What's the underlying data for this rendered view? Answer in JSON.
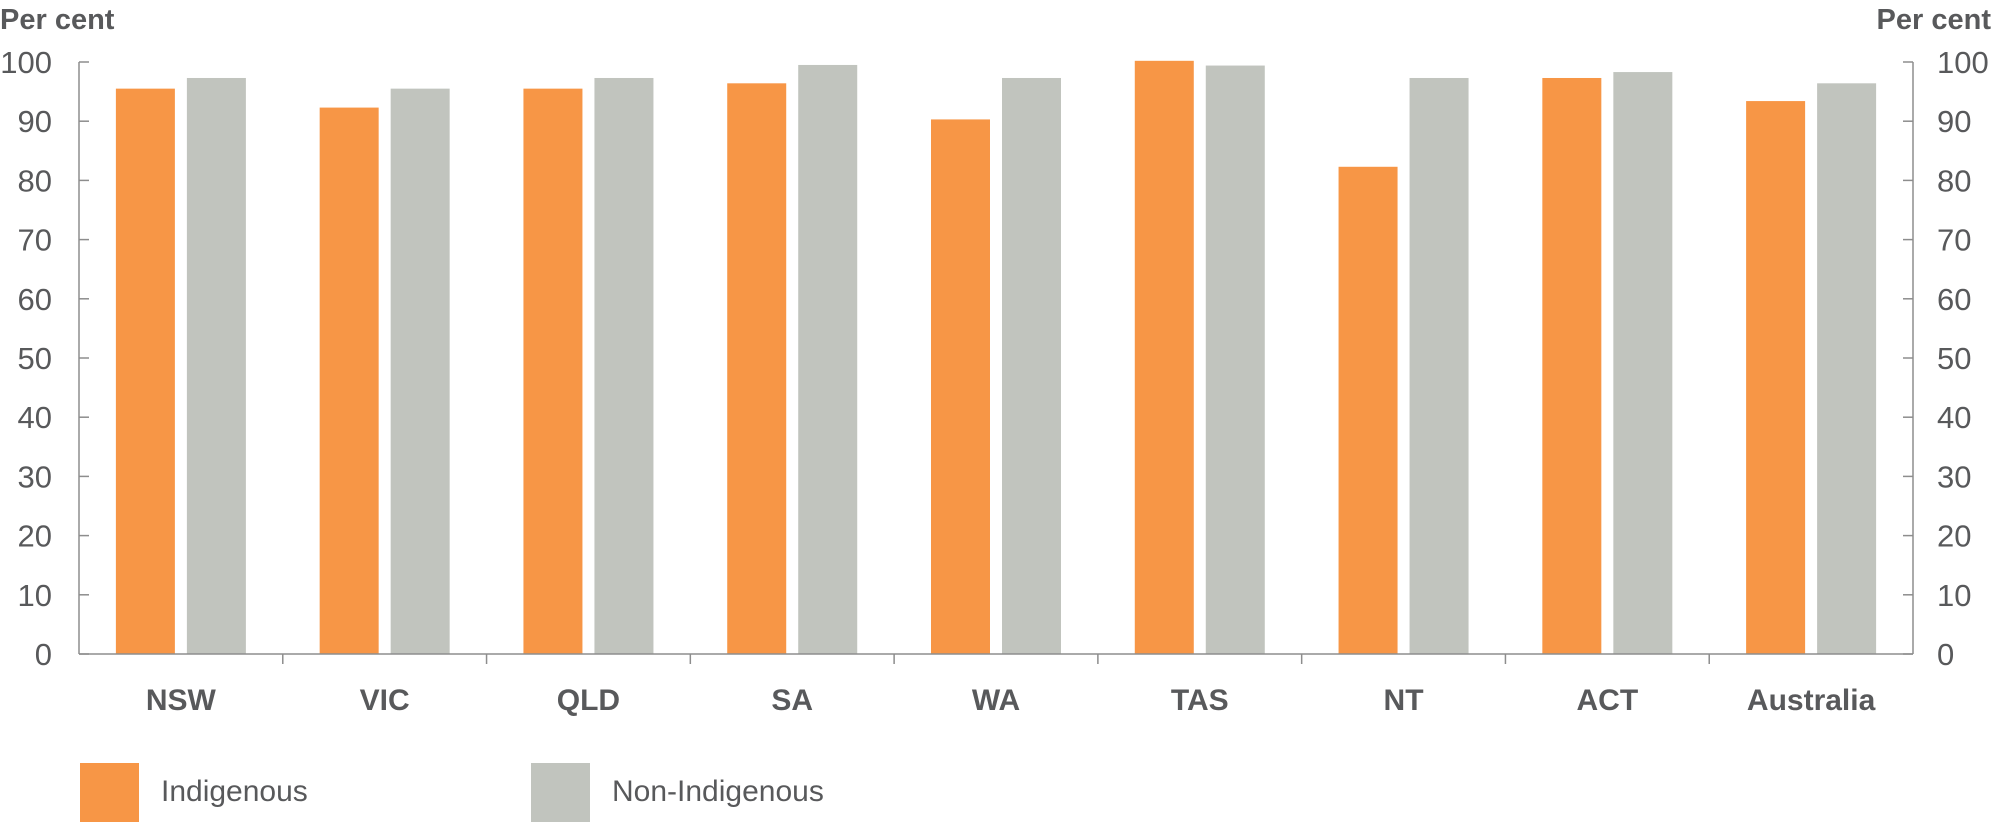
{
  "chart_data": {
    "type": "bar",
    "ylabel_left": "Per cent",
    "ylabel_right": "Per cent",
    "ylim": [
      0,
      100
    ],
    "yticks": [
      0,
      10,
      20,
      30,
      40,
      50,
      60,
      70,
      80,
      90,
      100
    ],
    "grid": false,
    "legend_position": "bottom-left",
    "categories": [
      "NSW",
      "VIC",
      "QLD",
      "SA",
      "WA",
      "TAS",
      "NT",
      "ACT",
      "Australia"
    ],
    "series": [
      {
        "name": "Indigenous",
        "color": "#f79646",
        "values": [
          95.5,
          92.3,
          95.5,
          96.4,
          90.3,
          100.2,
          82.3,
          97.3,
          93.4
        ]
      },
      {
        "name": "Non-Indigenous",
        "color": "#c1c4be",
        "values": [
          97.3,
          95.5,
          97.3,
          99.5,
          97.3,
          99.4,
          97.3,
          98.3,
          96.4
        ]
      }
    ]
  }
}
